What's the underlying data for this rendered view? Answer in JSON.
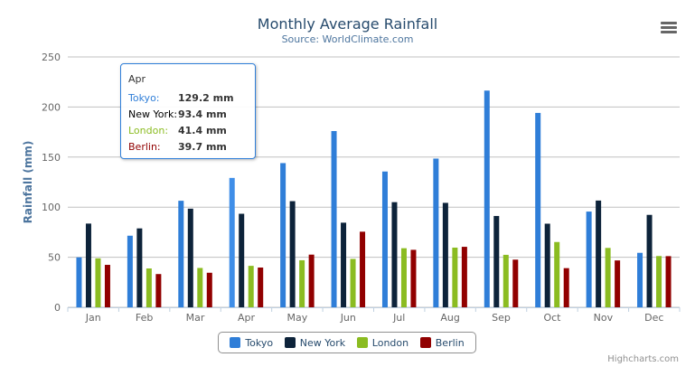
{
  "chart_data": {
    "type": "bar",
    "title": "Monthly Average Rainfall",
    "subtitle": "Source: WorldClimate.com",
    "ylabel": "Rainfall (mm)",
    "xlabel": "",
    "ylim": [
      0,
      250
    ],
    "yticks": [
      0,
      50,
      100,
      150,
      200,
      250
    ],
    "grid": true,
    "legend_position": "bottom-center",
    "categories": [
      "Jan",
      "Feb",
      "Mar",
      "Apr",
      "May",
      "Jun",
      "Jul",
      "Aug",
      "Sep",
      "Oct",
      "Nov",
      "Dec"
    ],
    "series": [
      {
        "name": "Tokyo",
        "color": "#2f7ed8",
        "values": [
          49.9,
          71.5,
          106.4,
          129.2,
          144.0,
          176.0,
          135.6,
          148.5,
          216.4,
          194.1,
          95.6,
          54.4
        ]
      },
      {
        "name": "New York",
        "color": "#0d233a",
        "values": [
          83.6,
          78.8,
          98.5,
          93.4,
          106.0,
          84.5,
          105.0,
          104.3,
          91.2,
          83.5,
          106.6,
          92.3
        ]
      },
      {
        "name": "London",
        "color": "#8bbc21",
        "values": [
          48.9,
          38.8,
          39.3,
          41.4,
          47.0,
          48.3,
          59.0,
          59.6,
          52.4,
          65.2,
          59.3,
          51.2
        ]
      },
      {
        "name": "Berlin",
        "color": "#910000",
        "values": [
          42.4,
          33.2,
          34.5,
          39.7,
          52.6,
          75.5,
          57.4,
          60.4,
          47.6,
          39.1,
          46.8,
          51.1
        ]
      }
    ]
  },
  "tooltip": {
    "header": "Apr",
    "rows": [
      {
        "name": "Tokyo:",
        "value": "129.2 mm",
        "color": "#2f7ed8"
      },
      {
        "name": "New York:",
        "value": "93.4 mm",
        "color": "#000000"
      },
      {
        "name": "London:",
        "value": "41.4 mm",
        "color": "#8bbc21"
      },
      {
        "name": "Berlin:",
        "value": "39.7 mm",
        "color": "#910000"
      }
    ]
  },
  "credits": "Highcharts.com",
  "menu_icon": "hamburger-menu-icon"
}
